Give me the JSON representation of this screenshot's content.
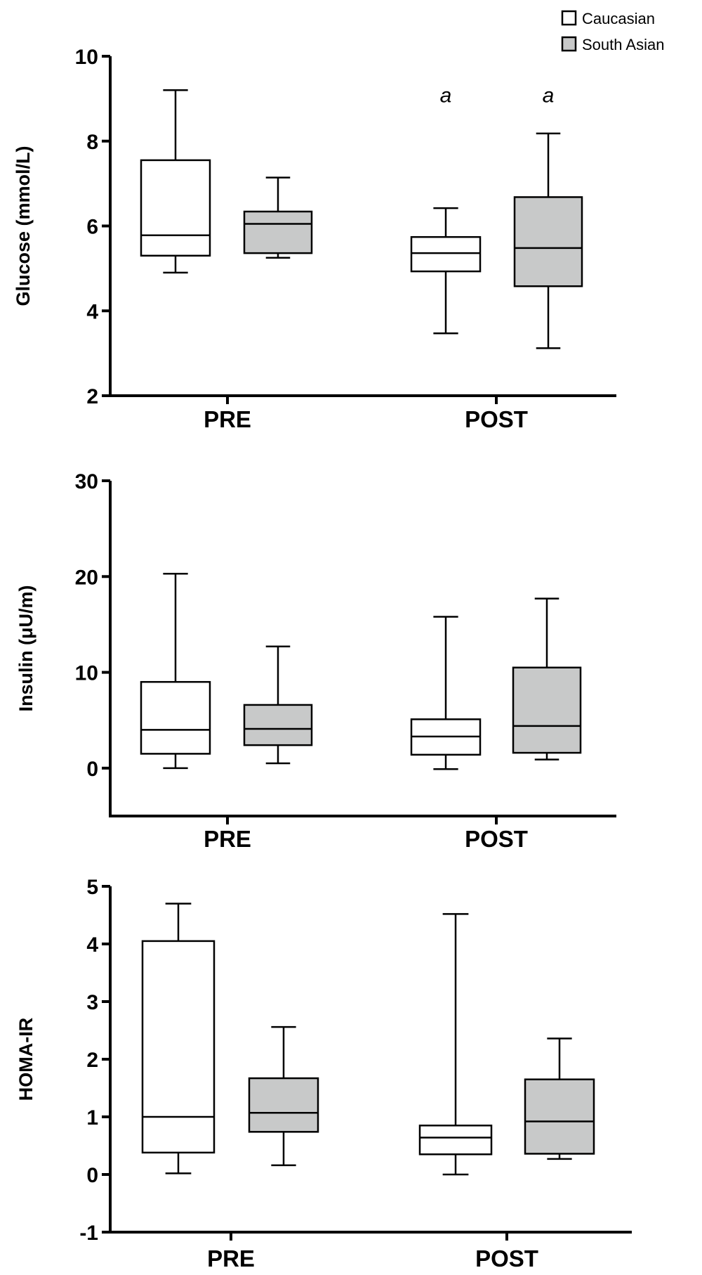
{
  "legend": {
    "items": [
      {
        "label": "Caucasian",
        "color": "#ffffff"
      },
      {
        "label": "South Asian",
        "color": "#c8c9c9"
      }
    ]
  },
  "chart_data": [
    {
      "type": "boxplot",
      "ylabel": "Glucose (mmol/L)",
      "ylim": [
        2,
        10
      ],
      "yticks": [
        2,
        4,
        6,
        8,
        10
      ],
      "categories": [
        "PRE",
        "POST"
      ],
      "series": [
        {
          "name": "Caucasian",
          "color": "#ffffff",
          "values": [
            {
              "category": "PRE",
              "min": 4.9,
              "q1": 5.3,
              "median": 5.78,
              "q3": 7.55,
              "max": 9.2
            },
            {
              "category": "POST",
              "min": 3.47,
              "q1": 4.93,
              "median": 5.36,
              "q3": 5.74,
              "max": 6.42
            }
          ]
        },
        {
          "name": "South Asian",
          "color": "#c8c9c9",
          "values": [
            {
              "category": "PRE",
              "min": 5.25,
              "q1": 5.36,
              "median": 6.05,
              "q3": 6.34,
              "max": 7.14
            },
            {
              "category": "POST",
              "min": 3.12,
              "q1": 4.58,
              "median": 5.48,
              "q3": 6.68,
              "max": 8.18
            }
          ]
        }
      ],
      "annotations": [
        {
          "category": "POST",
          "series": "Caucasian",
          "text": "a",
          "y": 9.1
        },
        {
          "category": "POST",
          "series": "South Asian",
          "text": "a",
          "y": 9.1
        }
      ]
    },
    {
      "type": "boxplot",
      "ylabel": "Insulin (μU/m)",
      "ylim": [
        -5,
        30
      ],
      "yticks": [
        0,
        10,
        20,
        30
      ],
      "categories": [
        "PRE",
        "POST"
      ],
      "series": [
        {
          "name": "Caucasian",
          "color": "#ffffff",
          "values": [
            {
              "category": "PRE",
              "min": 0.0,
              "q1": 1.5,
              "median": 4.0,
              "q3": 9.0,
              "max": 20.3
            },
            {
              "category": "POST",
              "min": -0.1,
              "q1": 1.4,
              "median": 3.3,
              "q3": 5.1,
              "max": 15.8
            }
          ]
        },
        {
          "name": "South Asian",
          "color": "#c8c9c9",
          "values": [
            {
              "category": "PRE",
              "min": 0.5,
              "q1": 2.4,
              "median": 4.1,
              "q3": 6.6,
              "max": 12.7
            },
            {
              "category": "POST",
              "min": 0.9,
              "q1": 1.6,
              "median": 4.4,
              "q3": 10.5,
              "max": 17.7
            }
          ]
        }
      ],
      "annotations": []
    },
    {
      "type": "boxplot",
      "ylabel": "HOMA-IR",
      "ylim": [
        -1,
        5
      ],
      "yticks": [
        -1,
        0,
        1,
        2,
        3,
        4,
        5
      ],
      "categories": [
        "PRE",
        "POST"
      ],
      "series": [
        {
          "name": "Caucasian",
          "color": "#ffffff",
          "values": [
            {
              "category": "PRE",
              "min": 0.02,
              "q1": 0.38,
              "median": 1.0,
              "q3": 4.05,
              "max": 4.7
            },
            {
              "category": "POST",
              "min": 0.0,
              "q1": 0.35,
              "median": 0.64,
              "q3": 0.85,
              "max": 4.52
            }
          ]
        },
        {
          "name": "South Asian",
          "color": "#c8c9c9",
          "values": [
            {
              "category": "PRE",
              "min": 0.16,
              "q1": 0.74,
              "median": 1.07,
              "q3": 1.67,
              "max": 2.56
            },
            {
              "category": "POST",
              "min": 0.27,
              "q1": 0.36,
              "median": 0.92,
              "q3": 1.65,
              "max": 2.36
            }
          ]
        }
      ],
      "annotations": []
    }
  ]
}
